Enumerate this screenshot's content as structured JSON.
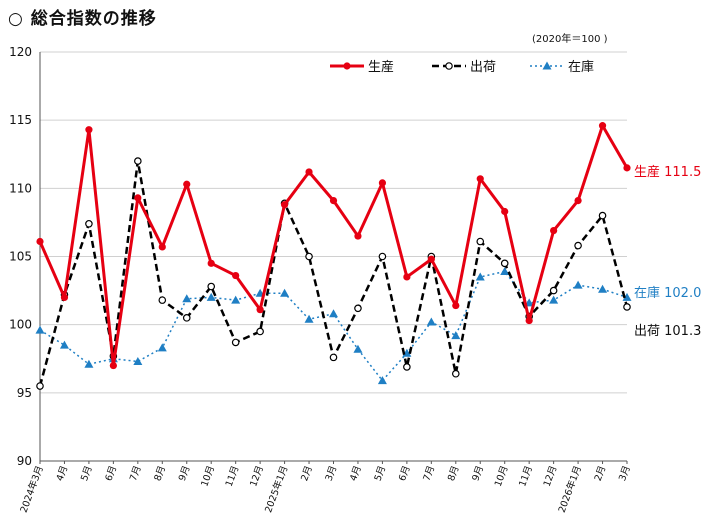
{
  "header": {
    "title": "○ 総合指数の推移",
    "unit_note": "(2020年＝100 )"
  },
  "colors": {
    "production": "#e60012",
    "shipments": "#000000",
    "inventory": "#1f7fc4",
    "grid": "#d0d0d0"
  },
  "chart_data": {
    "type": "line",
    "title": "総合指数の推移",
    "ylim": [
      90,
      120
    ],
    "yticks": [
      90,
      95,
      100,
      105,
      110,
      115,
      120
    ],
    "grid": "horizontal",
    "legend_position": "top-right",
    "categories": [
      "2024年3月",
      "4月",
      "5月",
      "6月",
      "7月",
      "8月",
      "9月",
      "10月",
      "11月",
      "12月",
      "2025年1月",
      "2月",
      "3月",
      "4月",
      "5月",
      "6月",
      "7月",
      "8月",
      "9月",
      "10月",
      "11月",
      "12月",
      "2026年1月",
      "2月",
      "3月"
    ],
    "series": [
      {
        "name": "生産",
        "style": "solid-red-dot",
        "values": [
          106.1,
          102.0,
          114.3,
          97.0,
          109.3,
          105.7,
          110.3,
          104.5,
          103.6,
          101.1,
          108.8,
          111.2,
          109.1,
          106.5,
          110.4,
          103.5,
          104.8,
          101.4,
          110.7,
          108.3,
          100.3,
          106.9,
          109.1,
          114.6,
          111.5
        ]
      },
      {
        "name": "出荷",
        "style": "dashed-black-hollow",
        "values": [
          95.5,
          102.2,
          107.4,
          97.7,
          112.0,
          101.8,
          100.5,
          102.8,
          98.7,
          99.5,
          108.9,
          105.0,
          97.6,
          101.2,
          105.0,
          96.9,
          105.0,
          96.4,
          106.1,
          104.5,
          100.6,
          102.5,
          105.8,
          108.0,
          101.3
        ]
      },
      {
        "name": "在庫",
        "style": "dotted-blue-triangle",
        "values": [
          99.6,
          98.5,
          97.1,
          97.5,
          97.3,
          98.3,
          101.9,
          102.0,
          101.8,
          102.3,
          102.3,
          100.4,
          100.8,
          98.2,
          95.9,
          97.9,
          100.2,
          99.2,
          103.5,
          103.9,
          101.6,
          101.8,
          102.9,
          102.6,
          102.0
        ]
      }
    ],
    "end_labels": [
      {
        "series": "生産",
        "text": "生産 111.5"
      },
      {
        "series": "在庫",
        "text": "在庫 102.0"
      },
      {
        "series": "出荷",
        "text": "出荷 101.3"
      }
    ]
  }
}
